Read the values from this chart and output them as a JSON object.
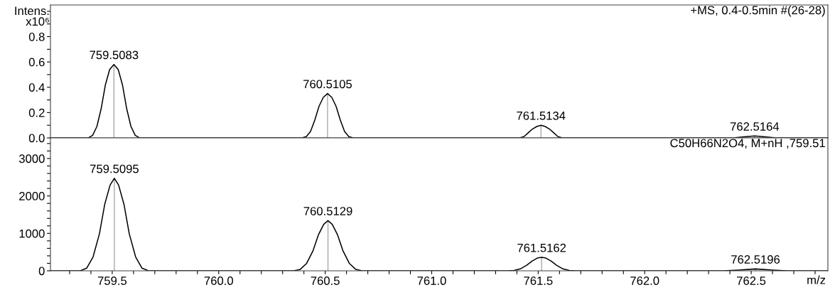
{
  "chart_data": [
    {
      "type": "line",
      "title": "+MS, 0.4-0.5min #(26-28)",
      "ylabel": "Intens.\nx10⁶",
      "tick_labels": "y",
      "grid": false,
      "legend": false,
      "xlim": [
        759.21,
        762.86
      ],
      "ylim": [
        0,
        1.05
      ],
      "xticks": [
        {
          "value": 759.3,
          "label": null
        },
        {
          "value": 759.4,
          "label": null
        },
        {
          "value": 759.5,
          "label": null
        },
        {
          "value": 759.6,
          "label": null
        },
        {
          "value": 759.7,
          "label": null
        },
        {
          "value": 759.8,
          "label": null
        },
        {
          "value": 759.9,
          "label": null
        },
        {
          "value": 760.0,
          "label": null
        },
        {
          "value": 760.1,
          "label": null
        },
        {
          "value": 760.2,
          "label": null
        },
        {
          "value": 760.3,
          "label": null
        },
        {
          "value": 760.4,
          "label": null
        },
        {
          "value": 760.5,
          "label": null
        },
        {
          "value": 760.6,
          "label": null
        },
        {
          "value": 760.7,
          "label": null
        },
        {
          "value": 760.8,
          "label": null
        },
        {
          "value": 760.9,
          "label": null
        },
        {
          "value": 761.0,
          "label": null
        },
        {
          "value": 761.1,
          "label": null
        },
        {
          "value": 761.2,
          "label": null
        },
        {
          "value": 761.3,
          "label": null
        },
        {
          "value": 761.4,
          "label": null
        },
        {
          "value": 761.5,
          "label": null
        },
        {
          "value": 761.6,
          "label": null
        },
        {
          "value": 761.7,
          "label": null
        },
        {
          "value": 761.8,
          "label": null
        },
        {
          "value": 761.9,
          "label": null
        },
        {
          "value": 762.0,
          "label": null
        },
        {
          "value": 762.1,
          "label": null
        },
        {
          "value": 762.2,
          "label": null
        },
        {
          "value": 762.3,
          "label": null
        },
        {
          "value": 762.4,
          "label": null
        },
        {
          "value": 762.5,
          "label": null
        },
        {
          "value": 762.6,
          "label": null
        },
        {
          "value": 762.7,
          "label": null
        },
        {
          "value": 762.8,
          "label": null
        }
      ],
      "yticks": [
        {
          "value": 0,
          "label": "0.0"
        },
        {
          "value": 0.1,
          "label": null
        },
        {
          "value": 0.2,
          "label": "0.2"
        },
        {
          "value": 0.3,
          "label": null
        },
        {
          "value": 0.4,
          "label": "0.4"
        },
        {
          "value": 0.5,
          "label": null
        },
        {
          "value": 0.6,
          "label": "0.6"
        },
        {
          "value": 0.7,
          "label": null
        },
        {
          "value": 0.8,
          "label": "0.8"
        },
        {
          "value": 0.9,
          "label": null
        },
        {
          "value": 1.0,
          "label": null
        }
      ],
      "series": [
        {
          "color": "#000000",
          "x": [
            759.21,
            759.388,
            759.408,
            759.428,
            759.448,
            759.468,
            759.488,
            759.508,
            759.528,
            759.548,
            759.568,
            759.588,
            759.608,
            759.628,
            760.391,
            760.411,
            760.431,
            760.451,
            760.471,
            760.491,
            760.511,
            760.531,
            760.551,
            760.571,
            760.591,
            760.611,
            760.631,
            761.393,
            761.413,
            761.433,
            761.453,
            761.473,
            761.493,
            761.513,
            761.533,
            761.553,
            761.573,
            761.593,
            761.613,
            761.633,
            762.416,
            762.466,
            762.516,
            762.566,
            762.616,
            762.86
          ],
          "values": [
            0,
            0,
            0.02,
            0.09,
            0.23,
            0.42,
            0.54,
            0.58,
            0.54,
            0.42,
            0.23,
            0.09,
            0.02,
            0,
            0,
            0.01,
            0.05,
            0.14,
            0.25,
            0.32,
            0.35,
            0.32,
            0.25,
            0.14,
            0.05,
            0.01,
            0,
            0,
            0,
            0.01,
            0.04,
            0.07,
            0.09,
            0.1,
            0.09,
            0.07,
            0.04,
            0.01,
            0,
            0,
            0,
            0.008,
            0.015,
            0.008,
            0,
            0
          ]
        }
      ],
      "annotations": [
        {
          "text": "759.5083",
          "x": 759.508,
          "y": 0.58
        },
        {
          "text": "760.5105",
          "x": 760.511,
          "y": 0.35
        },
        {
          "text": "761.5134",
          "x": 761.513,
          "y": 0.1
        },
        {
          "text": "762.5164",
          "x": 762.516,
          "y": 0.015
        }
      ]
    },
    {
      "type": "line",
      "title": "C50H66N2O4, M+nH ,759.51",
      "xlabel": "m/z",
      "grid": false,
      "legend": false,
      "xlim": [
        759.21,
        762.86
      ],
      "ylim": [
        0,
        3550
      ],
      "xticks": [
        {
          "value": 759.3,
          "label": null
        },
        {
          "value": 759.4,
          "label": null
        },
        {
          "value": 759.5,
          "label": "759.5"
        },
        {
          "value": 759.6,
          "label": null
        },
        {
          "value": 759.7,
          "label": null
        },
        {
          "value": 759.8,
          "label": null
        },
        {
          "value": 759.9,
          "label": null
        },
        {
          "value": 760.0,
          "label": "760.0"
        },
        {
          "value": 760.1,
          "label": null
        },
        {
          "value": 760.2,
          "label": null
        },
        {
          "value": 760.3,
          "label": null
        },
        {
          "value": 760.4,
          "label": null
        },
        {
          "value": 760.5,
          "label": "760.5"
        },
        {
          "value": 760.6,
          "label": null
        },
        {
          "value": 760.7,
          "label": null
        },
        {
          "value": 760.8,
          "label": null
        },
        {
          "value": 760.9,
          "label": null
        },
        {
          "value": 761.0,
          "label": "761.0"
        },
        {
          "value": 761.1,
          "label": null
        },
        {
          "value": 761.2,
          "label": null
        },
        {
          "value": 761.3,
          "label": null
        },
        {
          "value": 761.4,
          "label": null
        },
        {
          "value": 761.5,
          "label": "761.5"
        },
        {
          "value": 761.6,
          "label": null
        },
        {
          "value": 761.7,
          "label": null
        },
        {
          "value": 761.8,
          "label": null
        },
        {
          "value": 761.9,
          "label": null
        },
        {
          "value": 762.0,
          "label": "762.0"
        },
        {
          "value": 762.1,
          "label": null
        },
        {
          "value": 762.2,
          "label": null
        },
        {
          "value": 762.3,
          "label": null
        },
        {
          "value": 762.4,
          "label": null
        },
        {
          "value": 762.5,
          "label": "762.5"
        },
        {
          "value": 762.6,
          "label": null
        },
        {
          "value": 762.7,
          "label": null
        },
        {
          "value": 762.8,
          "label": null
        }
      ],
      "yticks": [
        0,
        {
          "value": 200,
          "label": null
        },
        {
          "value": 400,
          "label": null
        },
        {
          "value": 600,
          "label": null
        },
        {
          "value": 800,
          "label": null
        },
        1000,
        {
          "value": 1200,
          "label": null
        },
        {
          "value": 1400,
          "label": null
        },
        {
          "value": 1600,
          "label": null
        },
        {
          "value": 1800,
          "label": null
        },
        2000,
        {
          "value": 2200,
          "label": null
        },
        {
          "value": 2400,
          "label": null
        },
        {
          "value": 2600,
          "label": null
        },
        {
          "value": 2800,
          "label": null
        },
        3000,
        {
          "value": 3200,
          "label": null
        },
        {
          "value": 3400,
          "label": null
        }
      ],
      "series": [
        {
          "color": "#000000",
          "x": [
            759.21,
            759.35,
            759.38,
            759.41,
            759.44,
            759.465,
            759.49,
            759.51,
            759.53,
            759.555,
            759.58,
            759.61,
            759.64,
            759.67,
            760.353,
            760.383,
            760.413,
            760.443,
            760.468,
            760.493,
            760.513,
            760.533,
            760.558,
            760.583,
            760.613,
            760.643,
            760.673,
            761.356,
            761.386,
            761.416,
            761.446,
            761.471,
            761.496,
            761.516,
            761.536,
            761.561,
            761.586,
            761.616,
            761.646,
            761.676,
            762.37,
            762.44,
            762.52,
            762.6,
            762.67,
            762.86
          ],
          "values": [
            0,
            0,
            70,
            370,
            990,
            1780,
            2290,
            2470,
            2290,
            1780,
            990,
            370,
            70,
            0,
            0,
            40,
            200,
            540,
            960,
            1240,
            1340,
            1240,
            960,
            540,
            200,
            40,
            0,
            0,
            10,
            50,
            150,
            260,
            340,
            360,
            340,
            260,
            150,
            50,
            10,
            0,
            0,
            20,
            50,
            20,
            0,
            0
          ]
        }
      ],
      "annotations": [
        {
          "text": "759.5095",
          "x": 759.51,
          "y": 2470
        },
        {
          "text": "760.5129",
          "x": 760.513,
          "y": 1340
        },
        {
          "text": "761.5162",
          "x": 761.516,
          "y": 360
        },
        {
          "text": "762.5196",
          "x": 762.52,
          "y": 50
        }
      ]
    }
  ]
}
